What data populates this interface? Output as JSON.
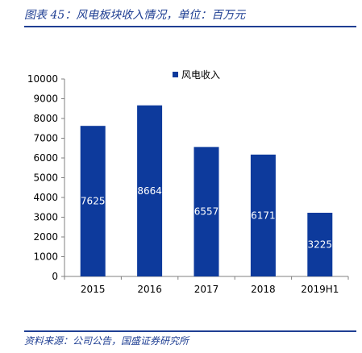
{
  "header": {
    "title": "图表 45：风电板块收入情况，单位：百万元"
  },
  "footer": {
    "source": "资料来源：公司公告，国盛证券研究所"
  },
  "colors": {
    "bar": "#0d3a9c",
    "accent": "#1f3f93"
  },
  "chart_data": {
    "type": "bar",
    "title": "",
    "xlabel": "",
    "ylabel": "",
    "categories": [
      "2015",
      "2016",
      "2017",
      "2018",
      "2019H1"
    ],
    "series": [
      {
        "name": "风电收入",
        "values": [
          7625,
          8664,
          6557,
          6171,
          3225
        ]
      }
    ],
    "ylim": [
      0,
      10000
    ],
    "yticks": [
      0,
      1000,
      2000,
      3000,
      4000,
      5000,
      6000,
      7000,
      8000,
      9000,
      10000
    ],
    "data_labels": true,
    "legend_position": "top-right",
    "grid": false
  }
}
